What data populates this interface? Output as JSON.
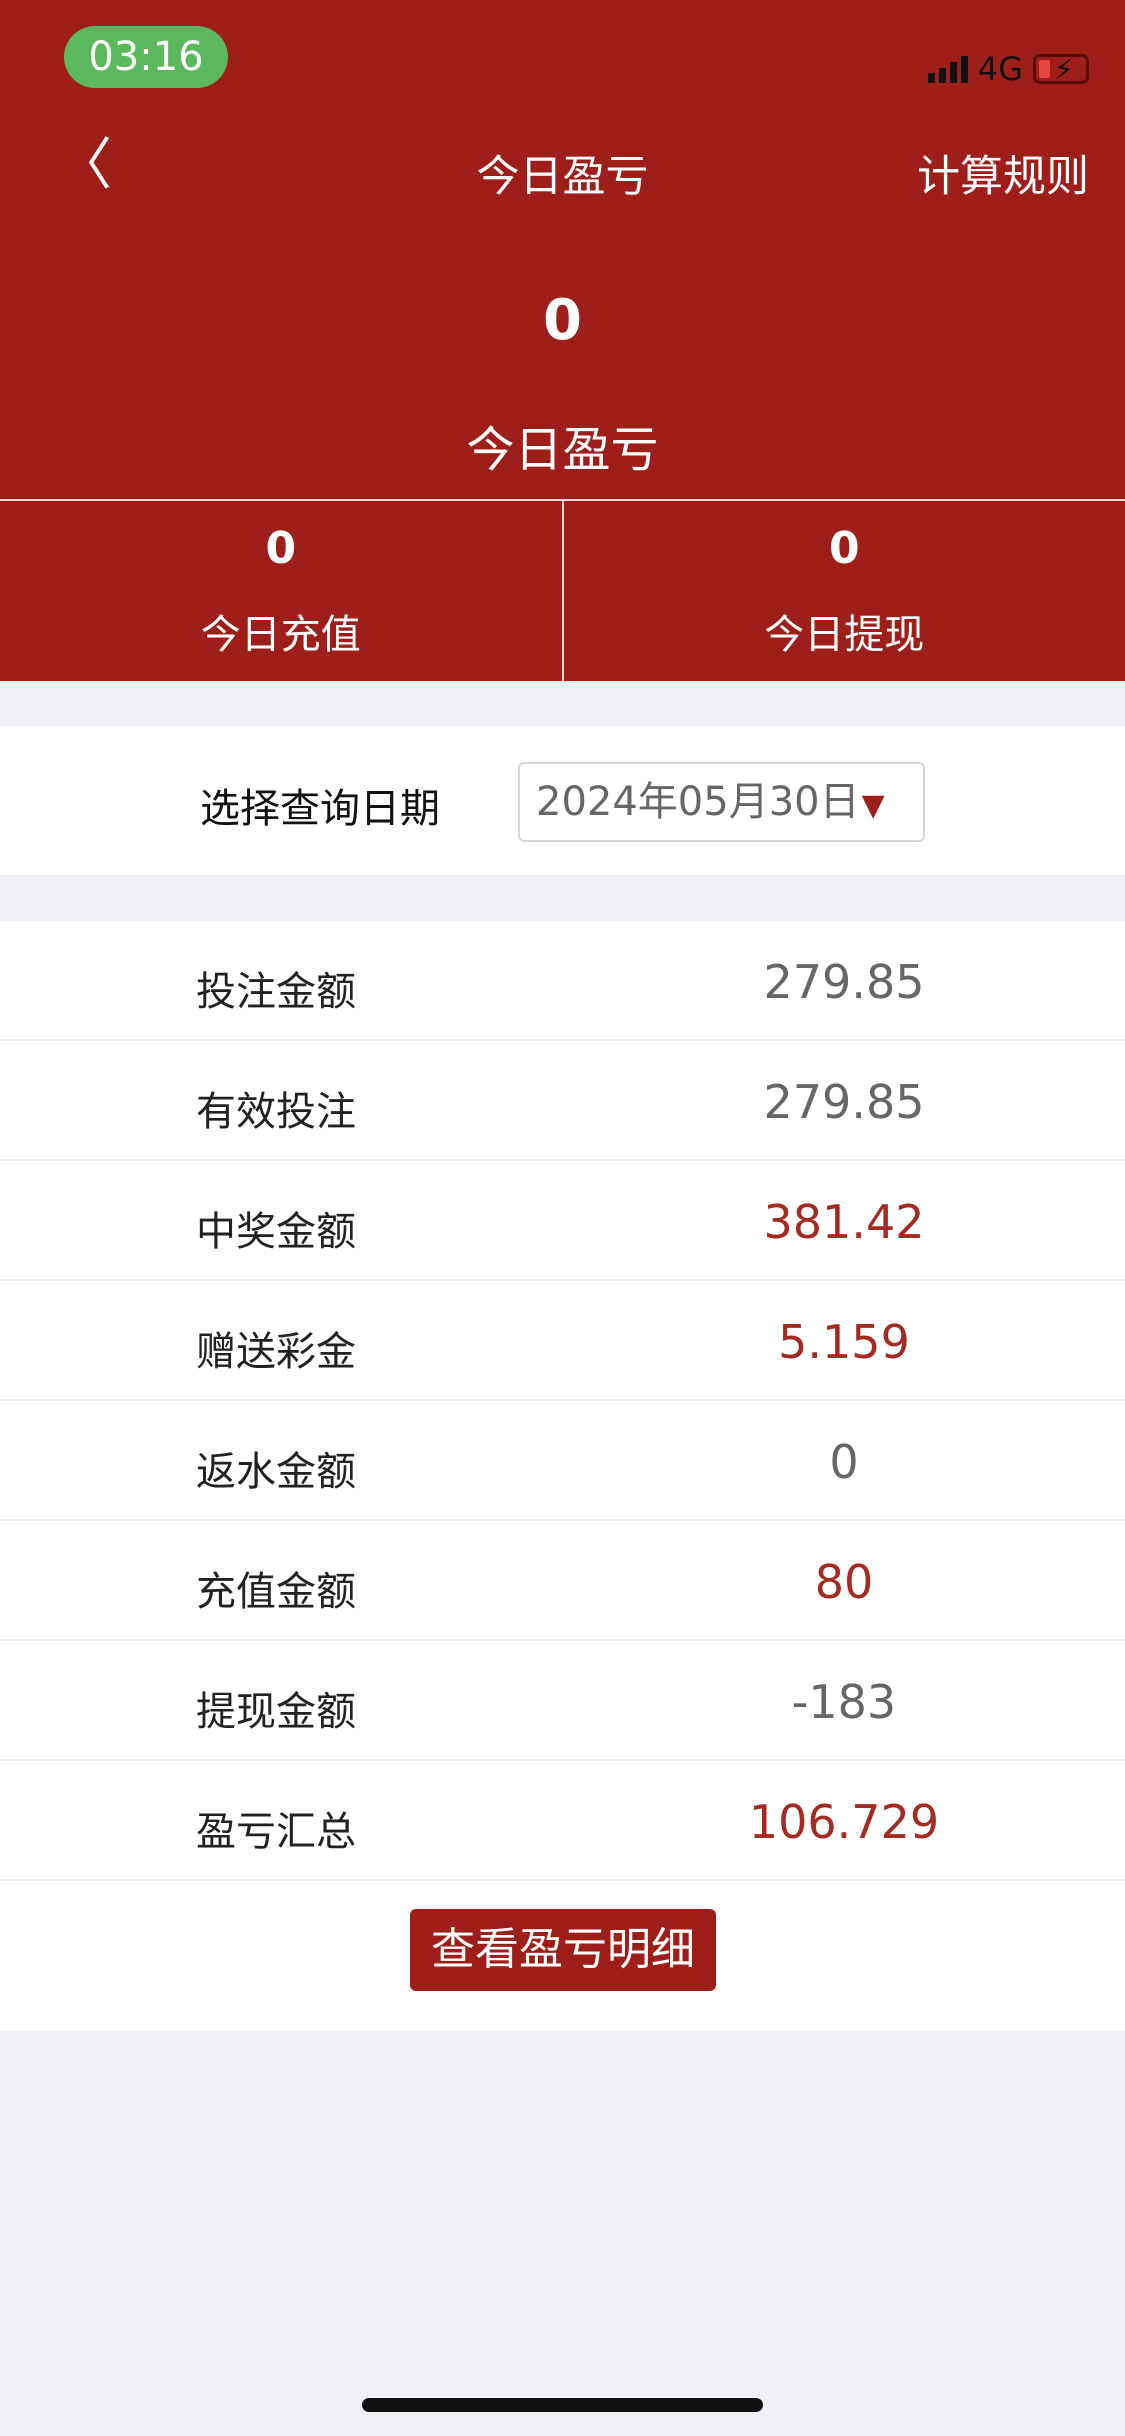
{
  "status_bar": {
    "time": "03:16",
    "network": "4G",
    "battery_charging": true
  },
  "nav": {
    "back_icon": "chevron-left-icon",
    "title": "今日盈亏",
    "right_link": "计算规则"
  },
  "summary": {
    "value": "0",
    "label": "今日盈亏"
  },
  "split": [
    {
      "value": "0",
      "label": "今日充值"
    },
    {
      "value": "0",
      "label": "今日提现"
    }
  ],
  "date_filter": {
    "label": "选择查询日期",
    "value": "2024年05月30日",
    "arrow": "▼"
  },
  "rows": [
    {
      "label": "投注金额",
      "value": "279.85",
      "highlight": false
    },
    {
      "label": "有效投注",
      "value": "279.85",
      "highlight": false
    },
    {
      "label": "中奖金额",
      "value": "381.42",
      "highlight": true
    },
    {
      "label": "赠送彩金",
      "value": "5.159",
      "highlight": true
    },
    {
      "label": "返水金额",
      "value": "0",
      "highlight": false
    },
    {
      "label": "充值金额",
      "value": "80",
      "highlight": true
    },
    {
      "label": "提现金额",
      "value": "-183",
      "highlight": false
    },
    {
      "label": "盈亏汇总",
      "value": "106.729",
      "highlight": true
    }
  ],
  "detail_button": "查看盈亏明细",
  "colors": {
    "brand": "#9e1f19",
    "highlight_value": "#a52a22",
    "muted_value": "#666666",
    "background": "#efeff4"
  }
}
